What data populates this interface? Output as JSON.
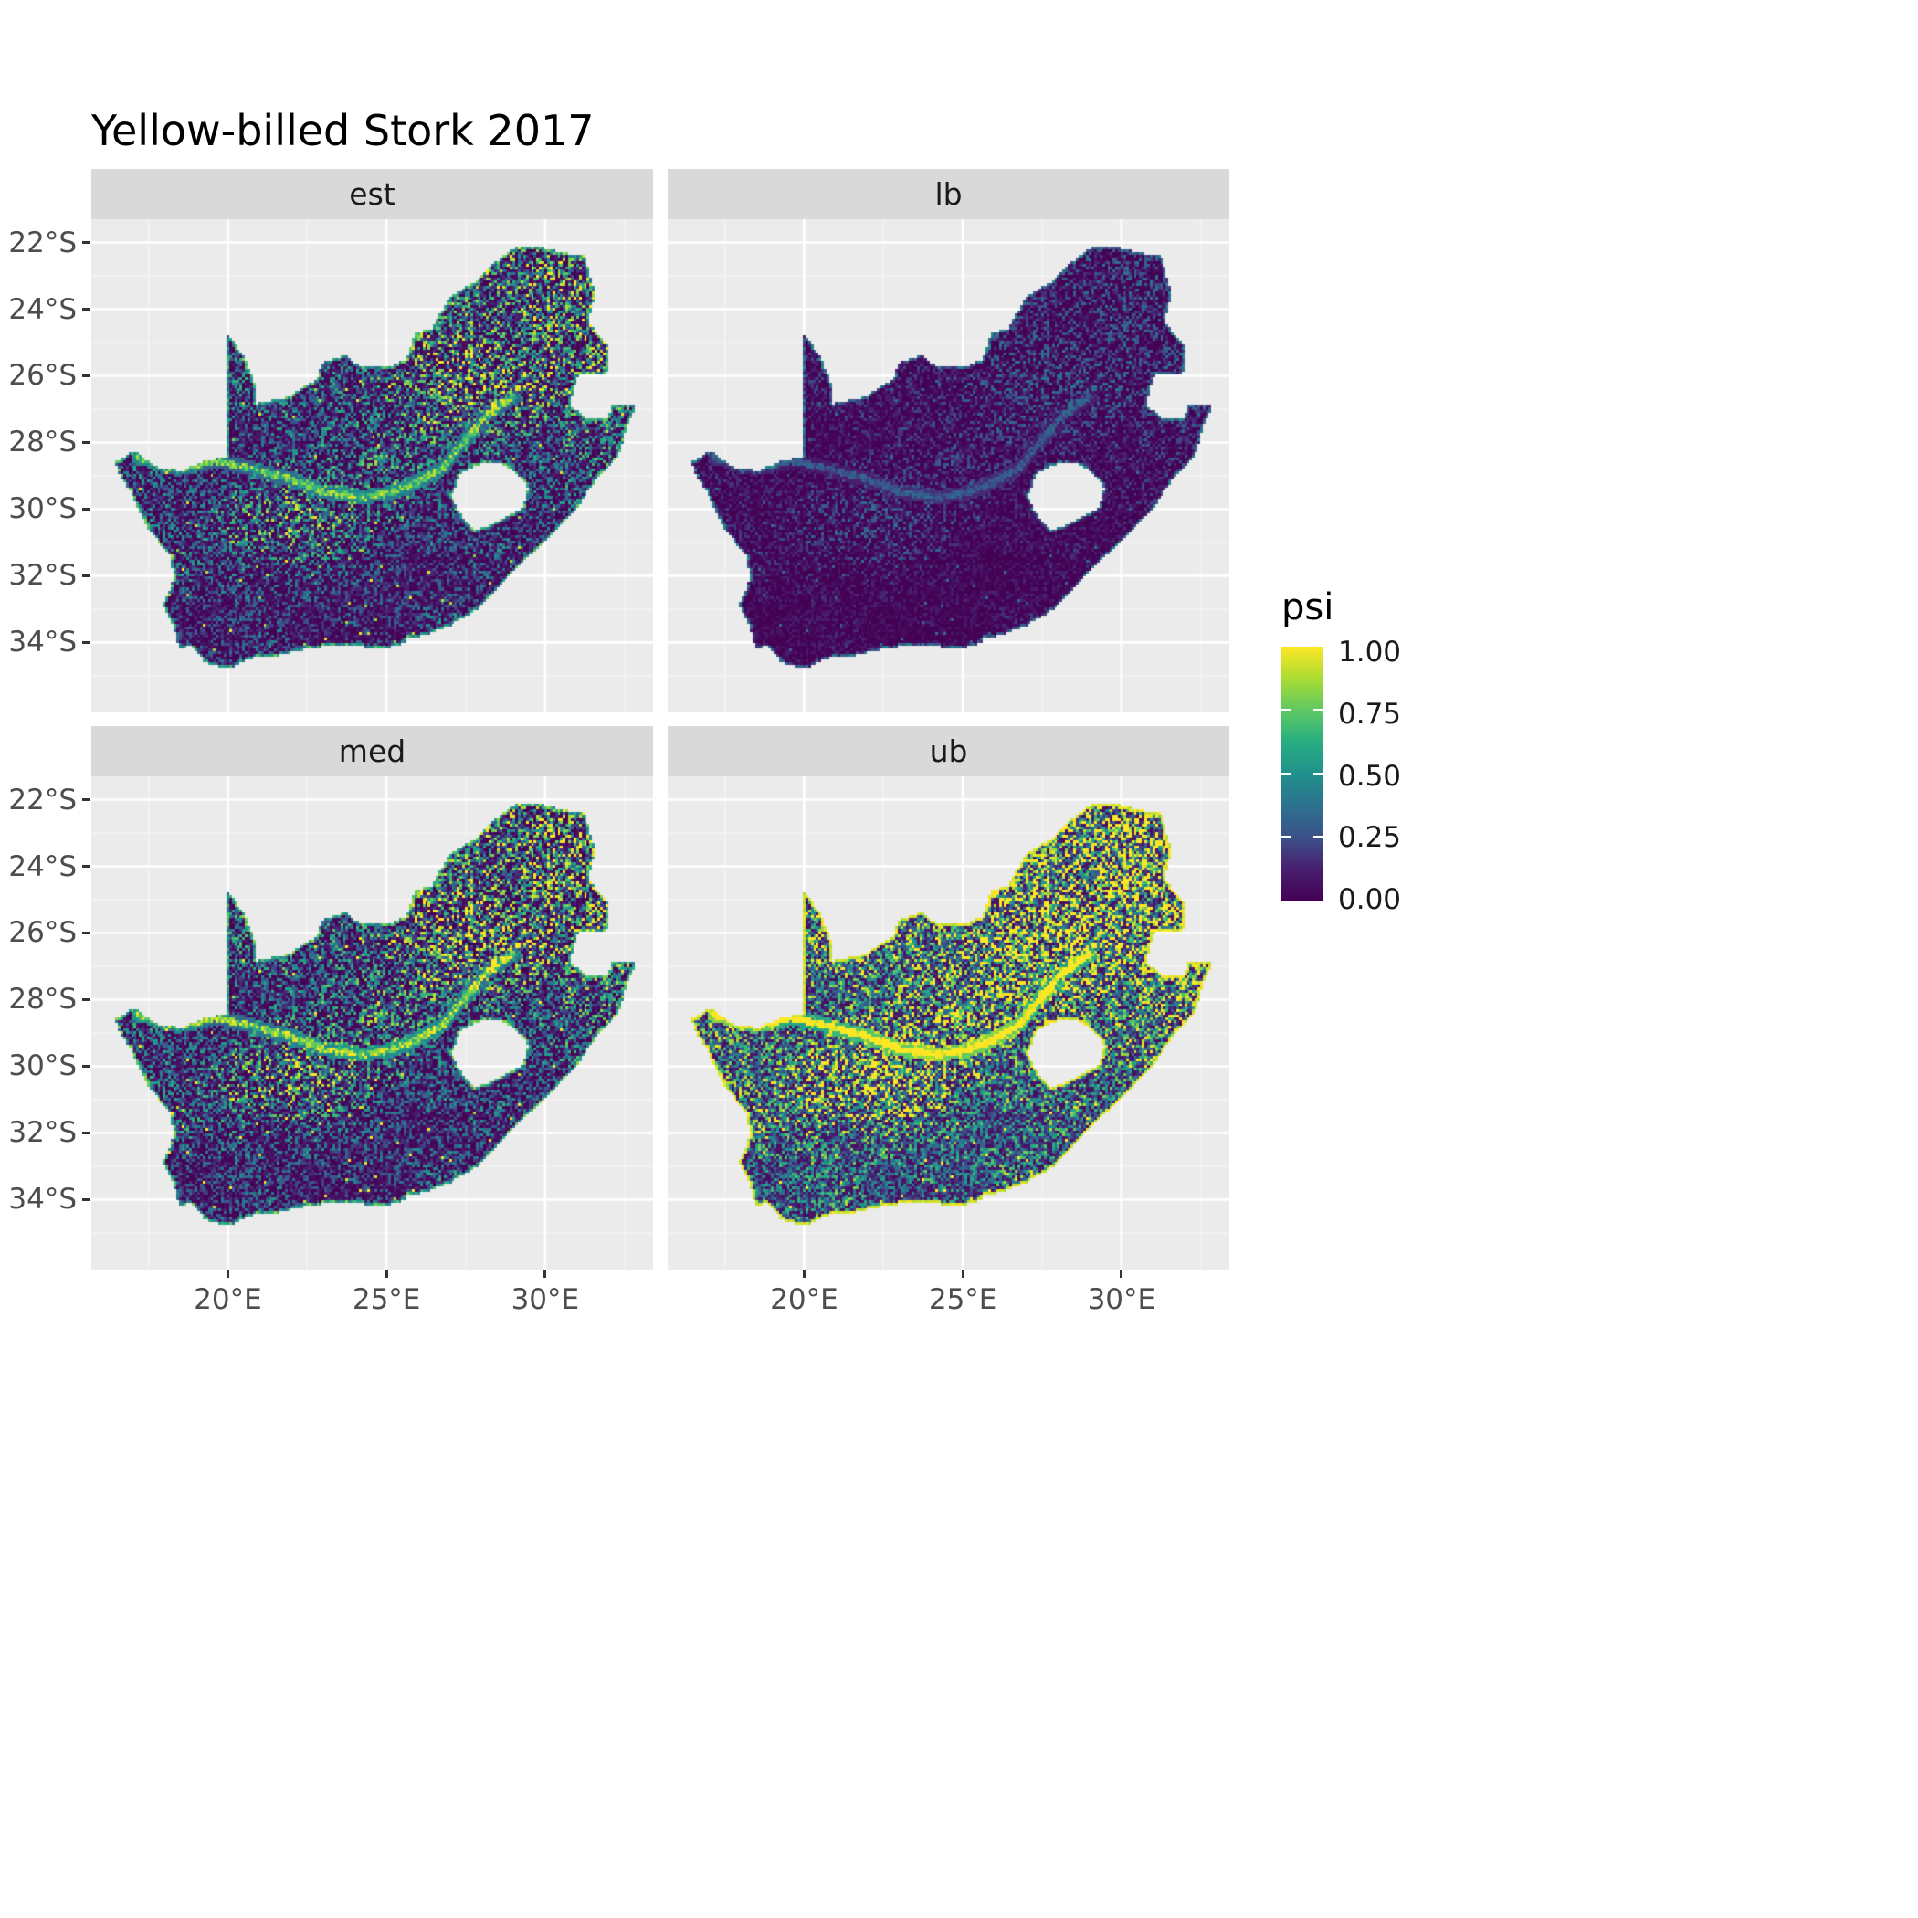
{
  "chart": {
    "title": "Yellow-billed Stork 2017",
    "legend": {
      "title": "psi",
      "ticks": [
        "1.00",
        "0.75",
        "0.50",
        "0.25",
        "0.00"
      ]
    }
  },
  "chart_data": {
    "type": "heatmap",
    "subtype": "faceted-raster-occupancy-map",
    "title": "Yellow-billed Stork 2017",
    "region": "South Africa",
    "facets": [
      "est",
      "lb",
      "med",
      "ub"
    ],
    "facet_grid": [
      [
        "est",
        "lb"
      ],
      [
        "med",
        "ub"
      ]
    ],
    "x_ticks": [
      "20°E",
      "25°E",
      "30°E"
    ],
    "x_tick_values": [
      20,
      25,
      30
    ],
    "y_ticks": [
      "22°S",
      "24°S",
      "26°S",
      "28°S",
      "30°S",
      "32°S",
      "34°S"
    ],
    "y_tick_values": [
      -22,
      -24,
      -26,
      -28,
      -30,
      -32,
      -34
    ],
    "lon_range": [
      15.7,
      33.4
    ],
    "lat_range": [
      -36.1,
      -21.3
    ],
    "legend_title": "psi",
    "legend_ticks": [
      1.0,
      0.75,
      0.5,
      0.25,
      0.0
    ],
    "legend_tick_labels": [
      "1.00",
      "0.75",
      "0.50",
      "0.25",
      "0.00"
    ],
    "value_range": [
      0,
      1
    ],
    "colormap": "viridis",
    "colormap_stops": {
      "0": "#440154",
      "0.25": "#3B528B",
      "0.5": "#21918C",
      "0.75": "#5EC962",
      "1": "#FDE725"
    },
    "panel_background": "#EBEBEB",
    "grid_color": "#FFFFFF",
    "strip_background": "#D9D9D9",
    "facet_value_summary": {
      "est": "mostly near-zero occupancy (dark purple); moderate-high patches in the north-east, along the Orange/Vaal river corridor and scattered coastal cells",
      "lb": "lower bound: darkest facet, values near zero almost everywhere with faint river corridor and sparse speckles",
      "med": "similar pattern to est with slightly higher values",
      "ub": "upper bound: brightest facet, widespread moderate-high values, strong yellow in the north-east and a yellow-rimmed coastline"
    }
  }
}
